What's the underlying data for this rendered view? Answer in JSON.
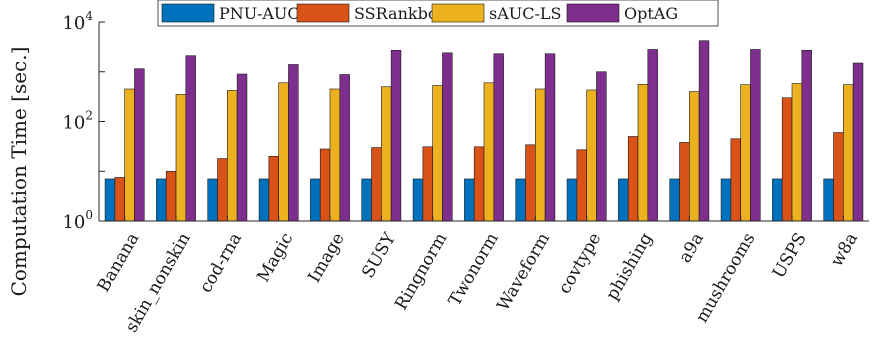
{
  "chart_data": {
    "type": "bar",
    "title": "",
    "xlabel": "",
    "ylabel": "Computation Time [sec.]",
    "yscale": "log",
    "ylim": [
      1,
      10000
    ],
    "yticks": [
      {
        "value": 1,
        "base": "10",
        "exp": "0"
      },
      {
        "value": 100,
        "base": "10",
        "exp": "2"
      },
      {
        "value": 10000,
        "base": "10",
        "exp": "4"
      }
    ],
    "grid": false,
    "legend_position": "top",
    "categories": [
      "Banana",
      "skin_nonskin",
      "cod-rna",
      "Magic",
      "Image",
      "SUSY",
      "Ringnorm",
      "Twonorm",
      "Waveform",
      "covtype",
      "phishing",
      "a9a",
      "mushrooms",
      "USPS",
      "w8a"
    ],
    "series": [
      {
        "name": "PNU-AUC",
        "color": "#0072BD",
        "values": [
          7,
          7,
          7,
          7,
          7,
          7,
          7,
          7,
          7,
          7,
          7,
          7,
          7,
          7,
          7
        ]
      },
      {
        "name": "SSRankboost",
        "color": "#D95319",
        "values": [
          7.5,
          10,
          18,
          20,
          28,
          30,
          31,
          31,
          34,
          27,
          50,
          38,
          45,
          300,
          60
        ]
      },
      {
        "name": "sAUC-LS",
        "color": "#EDB120",
        "values": [
          450,
          350,
          420,
          600,
          450,
          500,
          530,
          600,
          450,
          430,
          560,
          400,
          550,
          580,
          550
        ]
      },
      {
        "name": "OptAG",
        "color": "#7E2F8E",
        "values": [
          1150,
          2100,
          900,
          1400,
          880,
          2700,
          2400,
          2300,
          2300,
          1000,
          2800,
          4200,
          2800,
          2700,
          1500
        ]
      }
    ]
  }
}
